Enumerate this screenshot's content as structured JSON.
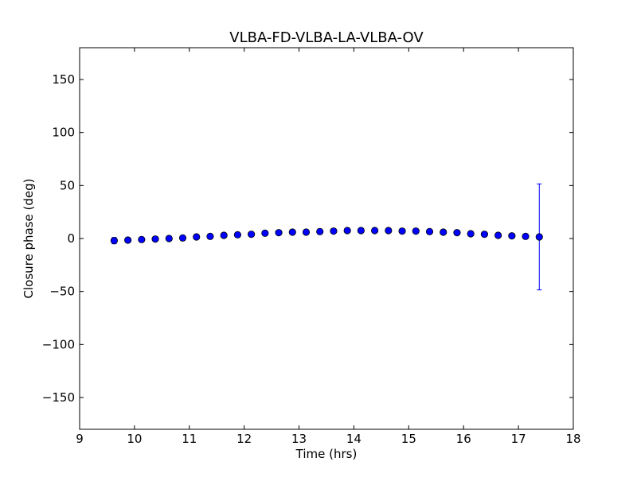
{
  "chart_data": {
    "type": "scatter",
    "title": "VLBA-FD-VLBA-LA-VLBA-OV",
    "xlabel": "Time (hrs)",
    "ylabel": "Closure phase (deg)",
    "xlim": [
      9,
      18
    ],
    "ylim": [
      -180,
      180
    ],
    "xticks": [
      9,
      10,
      11,
      12,
      13,
      14,
      15,
      16,
      17,
      18
    ],
    "xtick_labels": [
      "9",
      "10",
      "11",
      "12",
      "13",
      "14",
      "15",
      "16",
      "17",
      "18"
    ],
    "yticks": [
      -150,
      -100,
      -50,
      0,
      50,
      100,
      150
    ],
    "ytick_labels": [
      "−150",
      "−100",
      "−50",
      "0",
      "50",
      "100",
      "150"
    ],
    "grid": false,
    "marker_color": "#0000ff",
    "errorbar_color": "#0000ff",
    "x": [
      9.63,
      9.88,
      10.13,
      10.38,
      10.63,
      10.88,
      11.13,
      11.38,
      11.63,
      11.88,
      12.13,
      12.38,
      12.63,
      12.88,
      13.13,
      13.38,
      13.63,
      13.88,
      14.13,
      14.38,
      14.63,
      14.88,
      15.13,
      15.38,
      15.63,
      15.88,
      16.13,
      16.38,
      16.63,
      16.88,
      17.13,
      17.38
    ],
    "y": [
      -2,
      -1.5,
      -1,
      -0.5,
      0,
      0.5,
      1.5,
      2,
      3,
      3.5,
      4,
      5,
      5.5,
      6,
      6,
      6.5,
      7,
      7.5,
      7.5,
      7.5,
      7.5,
      7,
      7,
      6.5,
      6,
      5.5,
      4.5,
      4,
      3,
      2.5,
      2,
      1.5
    ],
    "yerr": [
      3,
      2,
      1.5,
      1.5,
      1.5,
      1.5,
      1.5,
      1.5,
      1.5,
      1.5,
      1.5,
      1.5,
      1.5,
      1.5,
      1.5,
      1.5,
      1.5,
      1.5,
      1.5,
      1.5,
      1.5,
      1.5,
      1.5,
      1.5,
      1.5,
      1.5,
      1.5,
      1.5,
      1.5,
      1.5,
      1.5,
      50
    ]
  }
}
